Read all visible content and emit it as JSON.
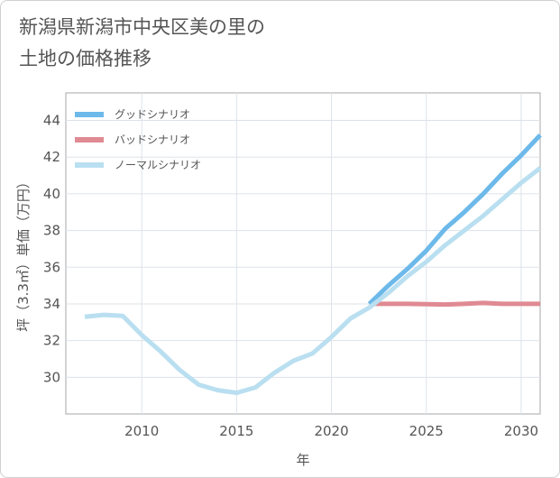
{
  "title_lines": [
    "新潟県新潟市中央区美の里の",
    "土地の価格推移"
  ],
  "chart_data": {
    "type": "line",
    "title": "新潟県新潟市中央区美の里の土地の価格推移",
    "xlabel": "年",
    "ylabel": "坪（3.3㎡）単価（万円）",
    "xlim": [
      2006,
      2031
    ],
    "ylim": [
      28,
      45.5
    ],
    "xticks": [
      2010,
      2015,
      2020,
      2025,
      2030
    ],
    "yticks": [
      30,
      32,
      34,
      36,
      38,
      40,
      42,
      44
    ],
    "grid": true,
    "legend_position": "top-left",
    "series": [
      {
        "name": "グッドシナリオ",
        "color": "#6cb9ea",
        "points": [
          [
            2022,
            34.0
          ],
          [
            2023,
            35.0
          ],
          [
            2024,
            35.9
          ],
          [
            2025,
            36.9
          ],
          [
            2026,
            38.1
          ],
          [
            2027,
            39.0
          ],
          [
            2028,
            40.0
          ],
          [
            2029,
            41.1
          ],
          [
            2030,
            42.1
          ],
          [
            2031,
            43.2
          ]
        ]
      },
      {
        "name": "バッドシナリオ",
        "color": "#e08a93",
        "points": [
          [
            2022,
            34.0
          ],
          [
            2023,
            34.0
          ],
          [
            2024,
            34.0
          ],
          [
            2025,
            33.98
          ],
          [
            2026,
            33.97
          ],
          [
            2027,
            34.0
          ],
          [
            2028,
            34.05
          ],
          [
            2029,
            34.0
          ],
          [
            2030,
            34.0
          ],
          [
            2031,
            34.0
          ]
        ]
      },
      {
        "name": "ノーマルシナリオ",
        "color": "#b9dff0",
        "points": [
          [
            2007,
            33.3
          ],
          [
            2008,
            33.4
          ],
          [
            2009,
            33.35
          ],
          [
            2010,
            32.3
          ],
          [
            2011,
            31.4
          ],
          [
            2012,
            30.4
          ],
          [
            2013,
            29.6
          ],
          [
            2014,
            29.3
          ],
          [
            2015,
            29.15
          ],
          [
            2016,
            29.45
          ],
          [
            2017,
            30.25
          ],
          [
            2018,
            30.9
          ],
          [
            2019,
            31.3
          ],
          [
            2020,
            32.2
          ],
          [
            2021,
            33.2
          ],
          [
            2022,
            33.8
          ],
          [
            2023,
            34.6
          ],
          [
            2024,
            35.5
          ],
          [
            2025,
            36.3
          ],
          [
            2026,
            37.2
          ],
          [
            2027,
            38.0
          ],
          [
            2028,
            38.8
          ],
          [
            2029,
            39.7
          ],
          [
            2030,
            40.6
          ],
          [
            2031,
            41.4
          ]
        ]
      }
    ]
  }
}
